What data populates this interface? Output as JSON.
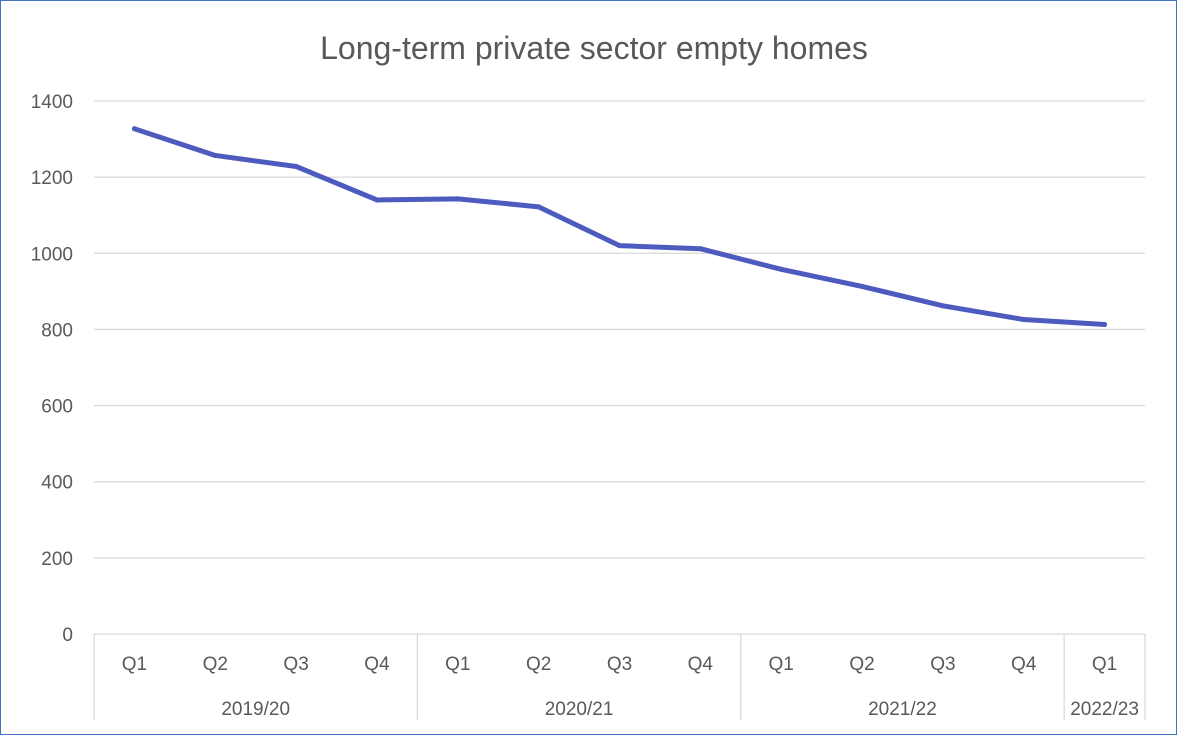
{
  "chart_data": {
    "type": "line",
    "title": "Long-term private sector empty homes",
    "xlabel": "",
    "ylabel": "",
    "ylim": [
      0,
      1400
    ],
    "yticks": [
      0,
      200,
      400,
      600,
      800,
      1000,
      1200,
      1400
    ],
    "categories": [
      "Q1",
      "Q2",
      "Q3",
      "Q4",
      "Q1",
      "Q2",
      "Q3",
      "Q4",
      "Q1",
      "Q2",
      "Q3",
      "Q4",
      "Q1"
    ],
    "groups": [
      {
        "label": "2019/20",
        "count": 4
      },
      {
        "label": "2020/21",
        "count": 4
      },
      {
        "label": "2021/22",
        "count": 4
      },
      {
        "label": "2022/23",
        "count": 1
      }
    ],
    "series": [
      {
        "values": [
          1327,
          1257,
          1228,
          1140,
          1143,
          1122,
          1020,
          1012,
          958,
          913,
          862,
          826,
          813
        ]
      }
    ],
    "grid": true,
    "legend": "none",
    "colors": {
      "line": "#4e5bbe",
      "grid": "#d9d9d9",
      "axis_text": "#595959",
      "border": "#4472c4"
    }
  }
}
